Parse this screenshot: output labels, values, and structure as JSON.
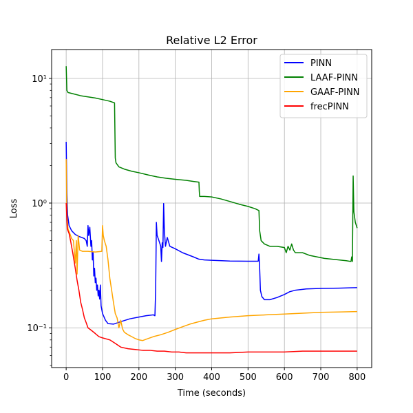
{
  "chart_data": {
    "type": "line",
    "title": "Relative L2 Error",
    "xlabel": "Time (seconds)",
    "ylabel": "Loss",
    "xlim": [
      -40,
      840
    ],
    "ylim": [
      0.048,
      17
    ],
    "yscale": "log",
    "x_ticks": [
      0,
      100,
      200,
      300,
      400,
      500,
      600,
      700,
      800
    ],
    "x_tick_labels": [
      "0",
      "100",
      "200",
      "300",
      "400",
      "500",
      "600",
      "700",
      "800"
    ],
    "y_ticks": [
      0.1,
      1,
      10
    ],
    "y_tick_labels": [
      "10⁻¹",
      "10⁰",
      "10¹"
    ],
    "grid": true,
    "legend_position": "top-right",
    "series": [
      {
        "name": "PINN",
        "color": "#0000ff",
        "points": [
          [
            0,
            3.1
          ],
          [
            2,
            1.2
          ],
          [
            4,
            0.8
          ],
          [
            8,
            0.66
          ],
          [
            15,
            0.6
          ],
          [
            25,
            0.56
          ],
          [
            35,
            0.54
          ],
          [
            50,
            0.52
          ],
          [
            55,
            0.5
          ],
          [
            58,
            0.45
          ],
          [
            60,
            0.66
          ],
          [
            62,
            0.55
          ],
          [
            65,
            0.64
          ],
          [
            68,
            0.45
          ],
          [
            70,
            0.5
          ],
          [
            72,
            0.35
          ],
          [
            74,
            0.4
          ],
          [
            76,
            0.26
          ],
          [
            78,
            0.3
          ],
          [
            80,
            0.23
          ],
          [
            82,
            0.25
          ],
          [
            84,
            0.2
          ],
          [
            86,
            0.22
          ],
          [
            88,
            0.18
          ],
          [
            90,
            0.2
          ],
          [
            92,
            0.17
          ],
          [
            94,
            0.22
          ],
          [
            96,
            0.15
          ],
          [
            100,
            0.13
          ],
          [
            108,
            0.115
          ],
          [
            115,
            0.108
          ],
          [
            130,
            0.107
          ],
          [
            150,
            0.112
          ],
          [
            175,
            0.118
          ],
          [
            200,
            0.122
          ],
          [
            220,
            0.125
          ],
          [
            240,
            0.127
          ],
          [
            244,
            0.125
          ],
          [
            246,
            0.2
          ],
          [
            248,
            0.7
          ],
          [
            250,
            0.55
          ],
          [
            255,
            0.5
          ],
          [
            260,
            0.45
          ],
          [
            262,
            0.34
          ],
          [
            264,
            0.48
          ],
          [
            266,
            0.44
          ],
          [
            268,
            0.99
          ],
          [
            270,
            0.6
          ],
          [
            273,
            0.45
          ],
          [
            278,
            0.53
          ],
          [
            285,
            0.45
          ],
          [
            300,
            0.43
          ],
          [
            320,
            0.4
          ],
          [
            350,
            0.37
          ],
          [
            365,
            0.355
          ],
          [
            380,
            0.35
          ],
          [
            400,
            0.348
          ],
          [
            450,
            0.343
          ],
          [
            500,
            0.342
          ],
          [
            528,
            0.342
          ],
          [
            530,
            0.39
          ],
          [
            532,
            0.3
          ],
          [
            534,
            0.2
          ],
          [
            538,
            0.178
          ],
          [
            545,
            0.168
          ],
          [
            560,
            0.168
          ],
          [
            580,
            0.175
          ],
          [
            600,
            0.185
          ],
          [
            615,
            0.195
          ],
          [
            630,
            0.2
          ],
          [
            660,
            0.205
          ],
          [
            700,
            0.207
          ],
          [
            750,
            0.208
          ],
          [
            800,
            0.21
          ]
        ]
      },
      {
        "name": "LAAF-PINN",
        "color": "#008000",
        "points": [
          [
            0,
            12.5
          ],
          [
            2,
            8.0
          ],
          [
            5,
            7.7
          ],
          [
            20,
            7.5
          ],
          [
            40,
            7.25
          ],
          [
            60,
            7.1
          ],
          [
            80,
            6.95
          ],
          [
            100,
            6.75
          ],
          [
            120,
            6.55
          ],
          [
            133,
            6.35
          ],
          [
            135,
            2.3
          ],
          [
            137,
            2.1
          ],
          [
            145,
            1.95
          ],
          [
            160,
            1.87
          ],
          [
            180,
            1.8
          ],
          [
            200,
            1.75
          ],
          [
            225,
            1.68
          ],
          [
            250,
            1.62
          ],
          [
            275,
            1.58
          ],
          [
            300,
            1.55
          ],
          [
            330,
            1.52
          ],
          [
            350,
            1.49
          ],
          [
            365,
            1.47
          ],
          [
            366,
            1.25
          ],
          [
            367,
            1.13
          ],
          [
            380,
            1.13
          ],
          [
            400,
            1.12
          ],
          [
            425,
            1.08
          ],
          [
            450,
            1.03
          ],
          [
            475,
            0.98
          ],
          [
            500,
            0.94
          ],
          [
            520,
            0.9
          ],
          [
            530,
            0.87
          ],
          [
            532,
            0.6
          ],
          [
            536,
            0.5
          ],
          [
            545,
            0.47
          ],
          [
            560,
            0.45
          ],
          [
            580,
            0.45
          ],
          [
            600,
            0.44
          ],
          [
            605,
            0.4
          ],
          [
            610,
            0.45
          ],
          [
            615,
            0.42
          ],
          [
            620,
            0.47
          ],
          [
            625,
            0.42
          ],
          [
            630,
            0.4
          ],
          [
            650,
            0.4
          ],
          [
            670,
            0.38
          ],
          [
            690,
            0.37
          ],
          [
            710,
            0.36
          ],
          [
            730,
            0.355
          ],
          [
            750,
            0.35
          ],
          [
            770,
            0.345
          ],
          [
            783,
            0.34
          ],
          [
            785,
            0.37
          ],
          [
            787,
            0.34
          ],
          [
            789,
            1.65
          ],
          [
            791,
            0.85
          ],
          [
            795,
            0.7
          ],
          [
            800,
            0.63
          ]
        ]
      },
      {
        "name": "GAAF-PINN",
        "color": "#ffa500",
        "points": [
          [
            0,
            2.25
          ],
          [
            2,
            0.8
          ],
          [
            5,
            0.62
          ],
          [
            10,
            0.57
          ],
          [
            15,
            0.52
          ],
          [
            20,
            0.5
          ],
          [
            25,
            0.33
          ],
          [
            28,
            0.5
          ],
          [
            30,
            0.27
          ],
          [
            33,
            0.55
          ],
          [
            37,
            0.42
          ],
          [
            45,
            0.41
          ],
          [
            60,
            0.41
          ],
          [
            80,
            0.405
          ],
          [
            98,
            0.41
          ],
          [
            100,
            0.66
          ],
          [
            102,
            0.55
          ],
          [
            105,
            0.5
          ],
          [
            110,
            0.45
          ],
          [
            115,
            0.35
          ],
          [
            120,
            0.25
          ],
          [
            125,
            0.2
          ],
          [
            130,
            0.16
          ],
          [
            135,
            0.13
          ],
          [
            140,
            0.12
          ],
          [
            145,
            0.1
          ],
          [
            150,
            0.115
          ],
          [
            155,
            0.098
          ],
          [
            160,
            0.092
          ],
          [
            170,
            0.088
          ],
          [
            180,
            0.085
          ],
          [
            190,
            0.082
          ],
          [
            200,
            0.08
          ],
          [
            210,
            0.079
          ],
          [
            220,
            0.081
          ],
          [
            240,
            0.085
          ],
          [
            260,
            0.088
          ],
          [
            280,
            0.092
          ],
          [
            300,
            0.097
          ],
          [
            320,
            0.102
          ],
          [
            340,
            0.107
          ],
          [
            360,
            0.111
          ],
          [
            380,
            0.115
          ],
          [
            400,
            0.118
          ],
          [
            450,
            0.122
          ],
          [
            500,
            0.125
          ],
          [
            550,
            0.127
          ],
          [
            600,
            0.129
          ],
          [
            650,
            0.131
          ],
          [
            700,
            0.133
          ],
          [
            750,
            0.134
          ],
          [
            800,
            0.135
          ]
        ]
      },
      {
        "name": "frecPINN",
        "color": "#ff0000",
        "points": [
          [
            0,
            1.0
          ],
          [
            3,
            0.62
          ],
          [
            8,
            0.57
          ],
          [
            12,
            0.5
          ],
          [
            18,
            0.4
          ],
          [
            25,
            0.3
          ],
          [
            30,
            0.24
          ],
          [
            35,
            0.2
          ],
          [
            40,
            0.16
          ],
          [
            45,
            0.14
          ],
          [
            50,
            0.12
          ],
          [
            55,
            0.11
          ],
          [
            60,
            0.1
          ],
          [
            70,
            0.095
          ],
          [
            80,
            0.09
          ],
          [
            90,
            0.085
          ],
          [
            100,
            0.083
          ],
          [
            120,
            0.08
          ],
          [
            135,
            0.075
          ],
          [
            150,
            0.07
          ],
          [
            170,
            0.068
          ],
          [
            190,
            0.067
          ],
          [
            210,
            0.066
          ],
          [
            230,
            0.066
          ],
          [
            250,
            0.065
          ],
          [
            270,
            0.065
          ],
          [
            290,
            0.064
          ],
          [
            310,
            0.064
          ],
          [
            330,
            0.063
          ],
          [
            350,
            0.063
          ],
          [
            400,
            0.063
          ],
          [
            450,
            0.063
          ],
          [
            500,
            0.064
          ],
          [
            550,
            0.064
          ],
          [
            600,
            0.064
          ],
          [
            650,
            0.065
          ],
          [
            700,
            0.065
          ],
          [
            750,
            0.065
          ],
          [
            800,
            0.065
          ]
        ]
      }
    ]
  }
}
